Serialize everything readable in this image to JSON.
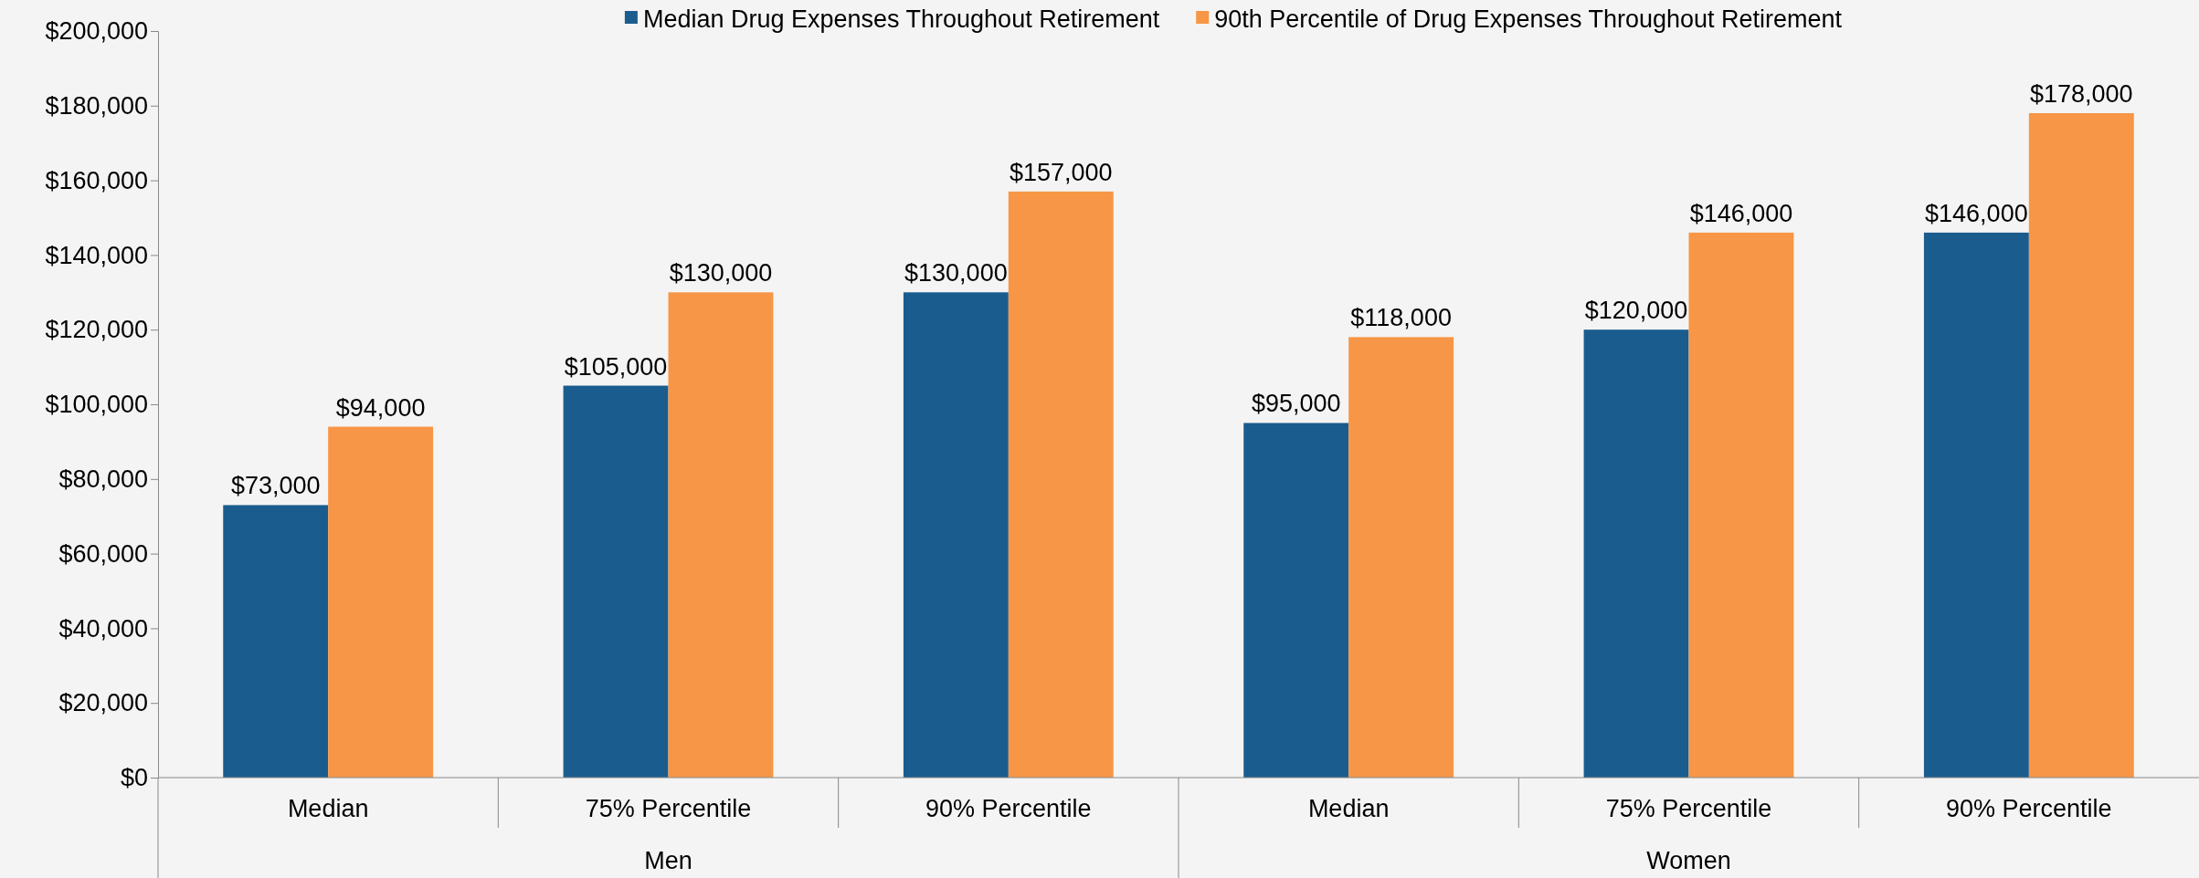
{
  "chart_data": {
    "type": "bar",
    "categories": [
      "Median",
      "75% Percentile",
      "90% Percentile",
      "Median",
      "75% Percentile",
      "90% Percentile"
    ],
    "annotations": [
      "Men",
      "Women"
    ],
    "series": [
      {
        "name": "Median Drug Expenses Throughout Retirement",
        "color": "#1a5c8e",
        "values": [
          73000,
          105000,
          130000,
          95000,
          120000,
          146000
        ]
      },
      {
        "name": "90th Percentile of Drug Expenses Throughout Retirement",
        "color": "#f79646",
        "values": [
          94000,
          130000,
          157000,
          118000,
          146000,
          178000
        ]
      }
    ],
    "ylim": [
      0,
      200000
    ],
    "yticks": [
      {
        "value": 0,
        "label": "$0"
      },
      {
        "value": 20000,
        "label": "$20,000"
      },
      {
        "value": 40000,
        "label": "$40,000"
      },
      {
        "value": 60000,
        "label": "$60,000"
      },
      {
        "value": 80000,
        "label": "$80,000"
      },
      {
        "value": 100000,
        "label": "$100,000"
      },
      {
        "value": 120000,
        "label": "$120,000"
      },
      {
        "value": 140000,
        "label": "$140,000"
      },
      {
        "value": 160000,
        "label": "$160,000"
      },
      {
        "value": 180000,
        "label": "$180,000"
      },
      {
        "value": 200000,
        "label": "$200,000"
      }
    ],
    "value_labels": [
      [
        "$73,000",
        "$105,000",
        "$130,000",
        "$95,000",
        "$120,000",
        "$146,000"
      ],
      [
        "$94,000",
        "$130,000",
        "$157,000",
        "$118,000",
        "$146,000",
        "$178,000"
      ]
    ],
    "legend": "top",
    "grid": false
  }
}
